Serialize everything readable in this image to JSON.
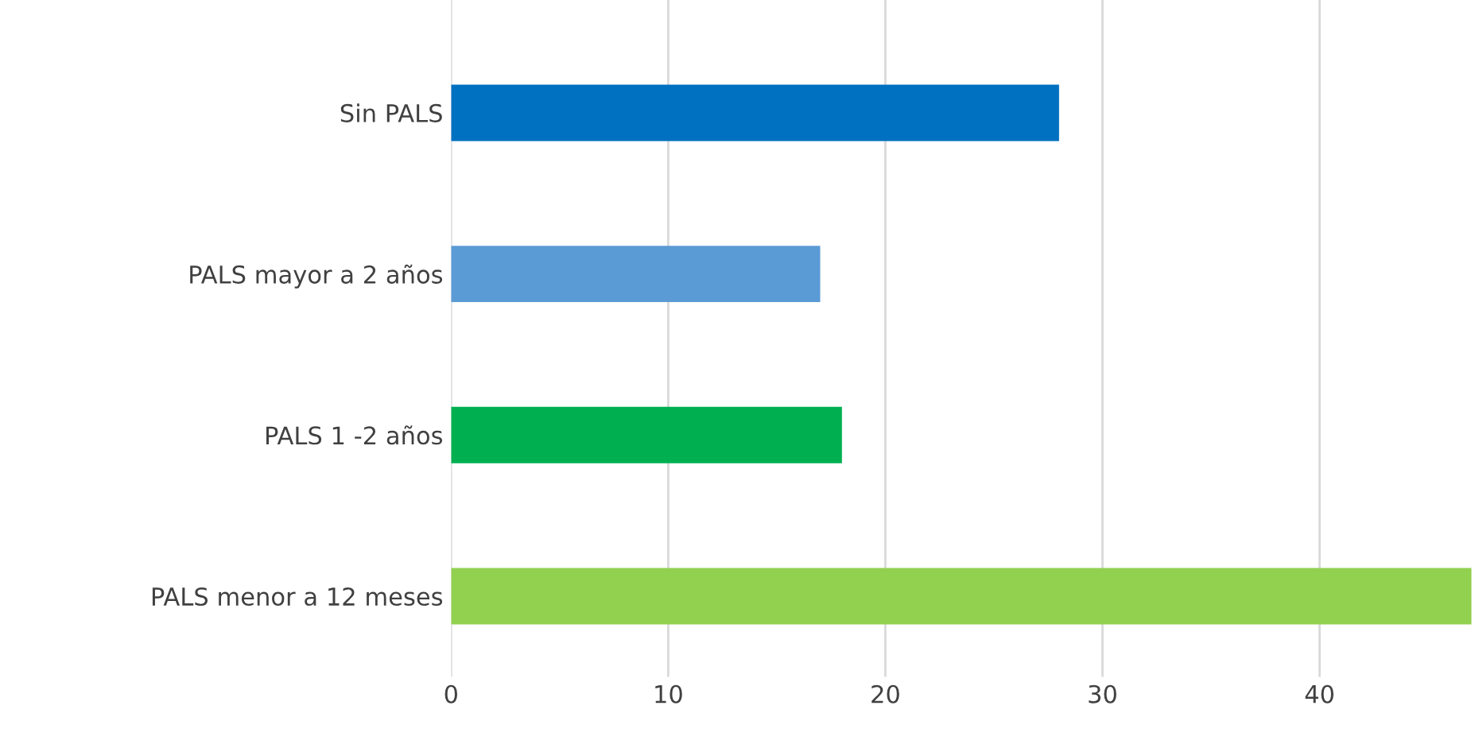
{
  "chart_data": {
    "type": "bar",
    "orientation": "horizontal",
    "categories": [
      "Sin PALS",
      "PALS mayor a 2 años",
      "PALS 1 -2 años",
      "PALS menor a 12 meses"
    ],
    "values": [
      28,
      17,
      18,
      47
    ],
    "colors": [
      "#0070c0",
      "#5b9bd5",
      "#00b050",
      "#92d050"
    ],
    "xlim": [
      0,
      47
    ],
    "xticks": [
      0,
      10,
      20,
      30,
      40
    ],
    "grid": "x",
    "legend": false
  }
}
